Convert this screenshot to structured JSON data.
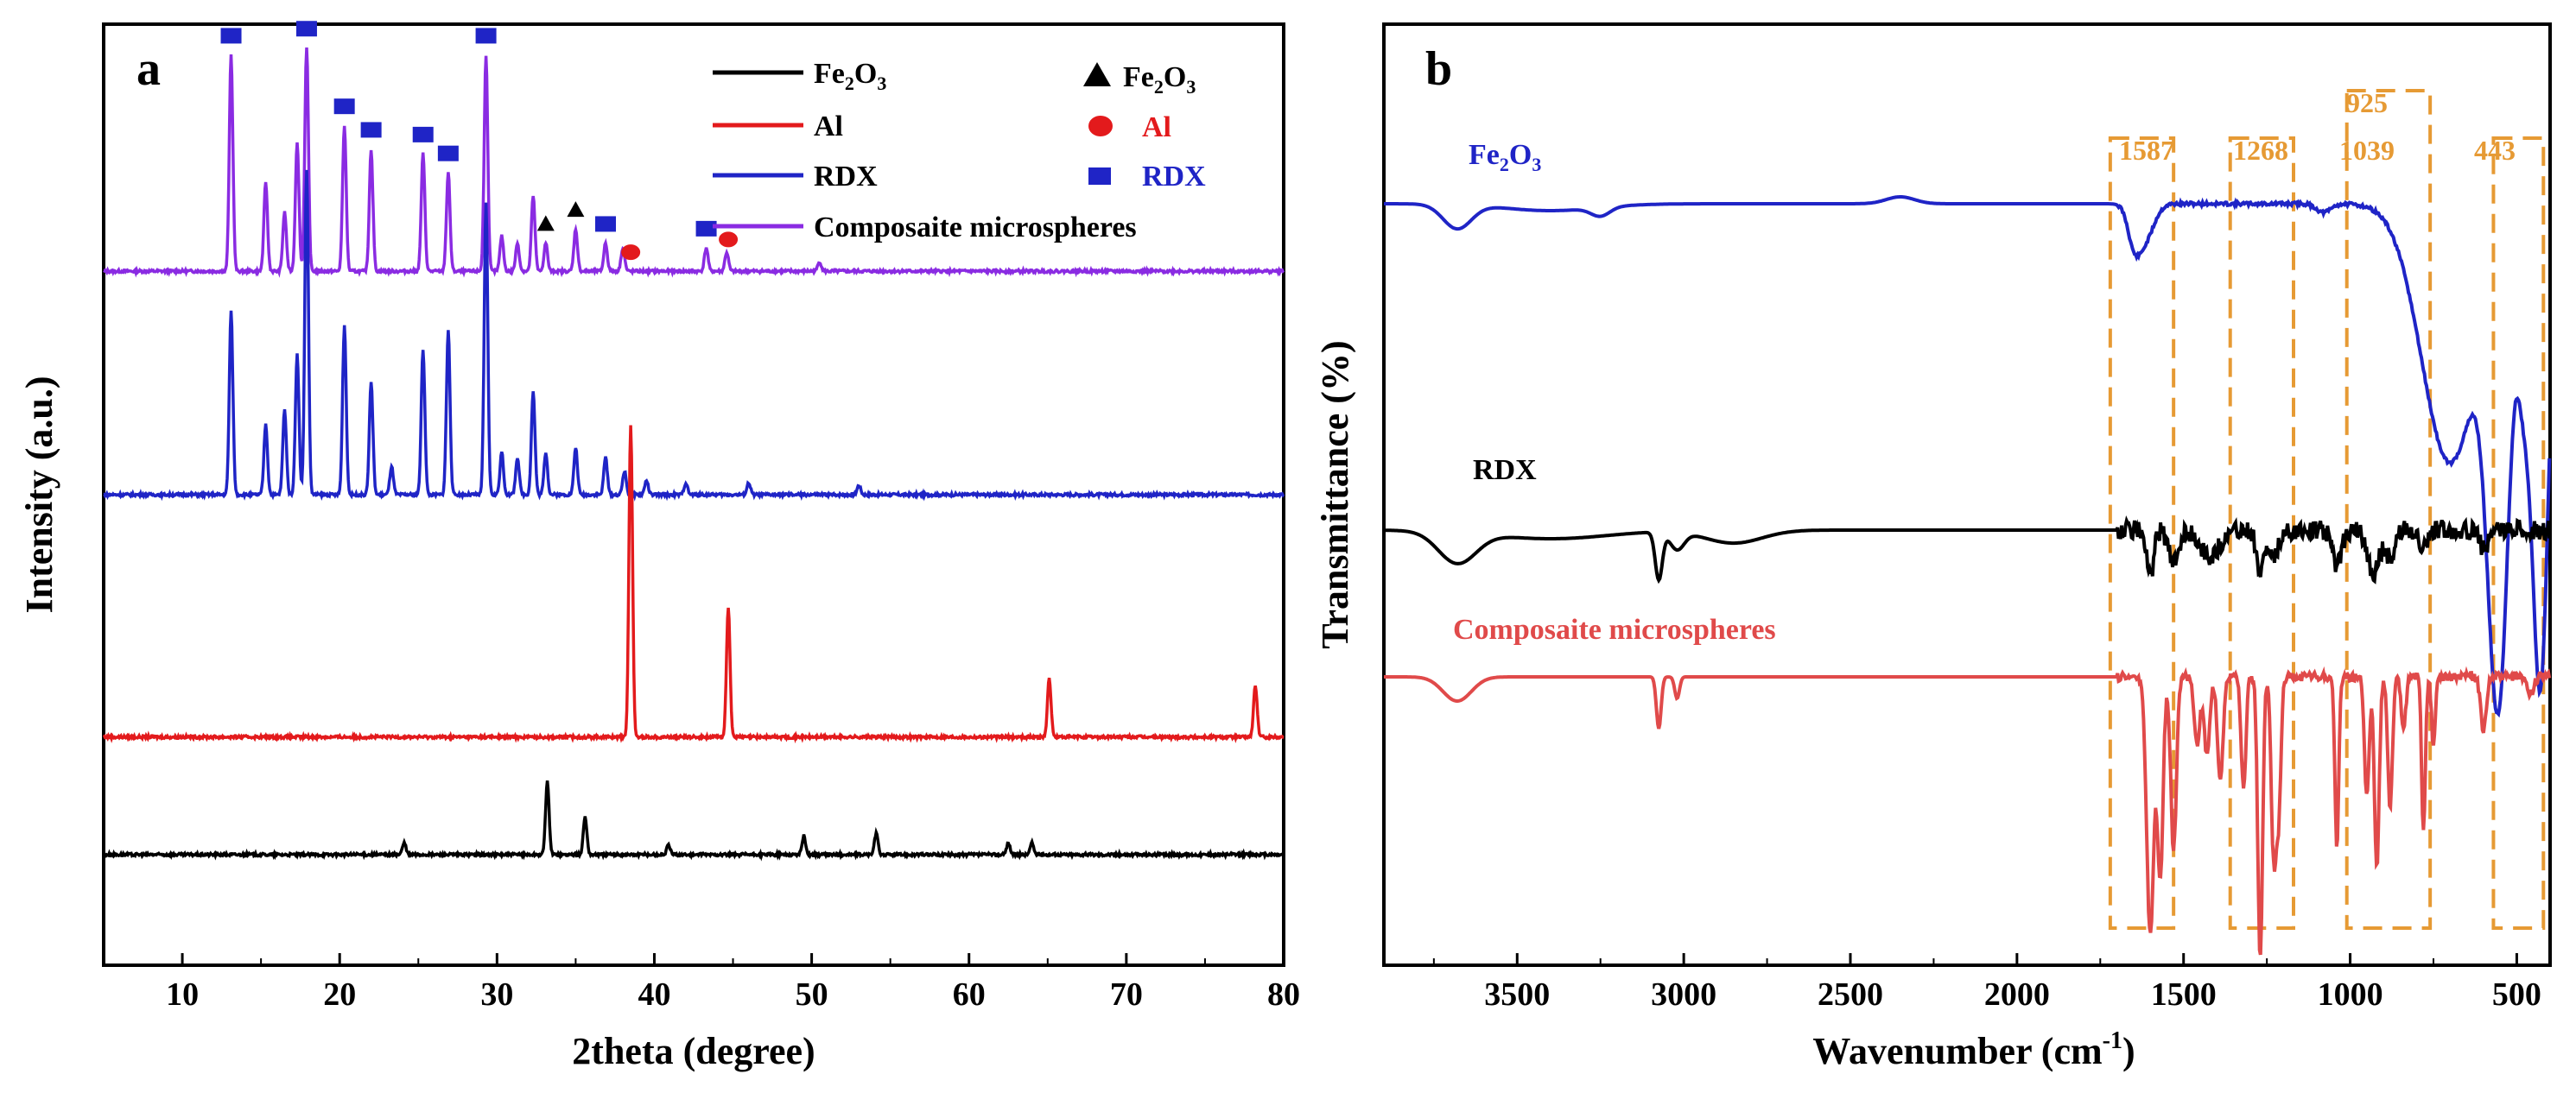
{
  "chart_data": [
    {
      "panel": "a",
      "type": "line",
      "title": "",
      "xlabel": "2theta (degree)",
      "ylabel": "Intensity (a.u.)",
      "xlim": [
        5,
        80
      ],
      "xticks": [
        10,
        20,
        30,
        40,
        50,
        60,
        70,
        80
      ],
      "legend": {
        "position": "top-right",
        "lines": [
          {
            "text": "Fe",
            "sub": "2",
            "text2": "O",
            "sub2": "3",
            "color": "#000000"
          },
          {
            "text": "Al",
            "color": "#e31a1c"
          },
          {
            "text": "RDX",
            "color": "#1f24c6"
          },
          {
            "text": "Composaite microspheres",
            "color": "#8a2be2"
          }
        ],
        "markers": [
          {
            "shape": "triangle",
            "text": "Fe",
            "sub": "2",
            "text2": "O",
            "sub2": "3",
            "color": "#000000",
            "textColor": "#000000"
          },
          {
            "shape": "circle",
            "text": "Al",
            "color": "#e31a1c",
            "textColor": "#e31a1c"
          },
          {
            "shape": "square",
            "text": "RDX",
            "color": "#1f24c6",
            "textColor": "#1f24c6"
          }
        ]
      },
      "series": [
        {
          "name": "Composaite microspheres",
          "color": "#8a2be2",
          "offset": 2.95,
          "peaks": [
            [
              13.1,
              0.92
            ],
            [
              15.3,
              0.38
            ],
            [
              16.5,
              0.25
            ],
            [
              17.3,
              0.55
            ],
            [
              17.9,
              0.95
            ],
            [
              20.3,
              0.62
            ],
            [
              22.0,
              0.52
            ],
            [
              25.3,
              0.5
            ],
            [
              26.9,
              0.42
            ],
            [
              29.3,
              0.92
            ],
            [
              30.3,
              0.15
            ],
            [
              31.3,
              0.12
            ],
            [
              32.3,
              0.32
            ],
            [
              33.1,
              0.12
            ],
            [
              35.0,
              0.18
            ],
            [
              36.9,
              0.12
            ],
            [
              38.0,
              0.1
            ],
            [
              43.3,
              0.1
            ],
            [
              44.6,
              0.08
            ],
            [
              50.5,
              0.04
            ]
          ]
        },
        {
          "name": "RDX",
          "color": "#1f24c6",
          "offset": 2.0,
          "peaks": [
            [
              13.1,
              0.78
            ],
            [
              15.3,
              0.3
            ],
            [
              16.5,
              0.36
            ],
            [
              17.3,
              0.6
            ],
            [
              17.9,
              1.38
            ],
            [
              20.3,
              0.72
            ],
            [
              22.0,
              0.48
            ],
            [
              23.3,
              0.12
            ],
            [
              25.3,
              0.62
            ],
            [
              26.9,
              0.7
            ],
            [
              29.3,
              1.24
            ],
            [
              30.3,
              0.18
            ],
            [
              31.3,
              0.16
            ],
            [
              32.3,
              0.44
            ],
            [
              33.1,
              0.18
            ],
            [
              35.0,
              0.2
            ],
            [
              36.9,
              0.16
            ],
            [
              38.1,
              0.1
            ],
            [
              39.5,
              0.06
            ],
            [
              42.0,
              0.05
            ],
            [
              46.0,
              0.05
            ],
            [
              53.0,
              0.04
            ]
          ]
        },
        {
          "name": "Al",
          "color": "#e31a1c",
          "offset": 0.97,
          "peaks": [
            [
              38.5,
              1.32
            ],
            [
              44.7,
              0.55
            ],
            [
              65.1,
              0.25
            ],
            [
              78.2,
              0.22
            ]
          ]
        },
        {
          "name": "Fe2O3",
          "color": "#000000",
          "offset": 0.47,
          "peaks": [
            [
              24.1,
              0.05
            ],
            [
              33.2,
              0.31
            ],
            [
              35.6,
              0.16
            ],
            [
              40.9,
              0.04
            ],
            [
              49.5,
              0.08
            ],
            [
              54.1,
              0.09
            ],
            [
              62.5,
              0.05
            ],
            [
              64.0,
              0.05
            ]
          ]
        }
      ],
      "markers": [
        {
          "shape": "square",
          "color": "#1f24c6",
          "x": [
            13.1,
            17.9,
            20.3,
            22.0,
            25.3,
            26.9,
            29.3,
            36.9,
            43.3
          ]
        },
        {
          "shape": "triangle",
          "color": "#000000",
          "x": [
            33.1,
            35.0
          ]
        },
        {
          "shape": "circle",
          "color": "#e31a1c",
          "x": [
            38.5,
            44.7
          ]
        }
      ]
    },
    {
      "panel": "b",
      "type": "line",
      "title": "",
      "xlabel": "Wavenumber (cm",
      "xlabel_sup": "-1",
      "xlabel_end": ")",
      "ylabel": "Transmittance (%)",
      "xlim": [
        3900,
        400
      ],
      "xticks": [
        3500,
        3000,
        2500,
        2000,
        1500,
        1000,
        500
      ],
      "series": [
        {
          "name": "Fe2O3",
          "label": "Fe",
          "sub": "2",
          "label2": "O",
          "sub2": "3",
          "color": "#1f24c6"
        },
        {
          "name": "RDX",
          "label": "RDX",
          "color": "#000000"
        },
        {
          "name": "Composaite microspheres",
          "label": "Composaite microspheres",
          "color": "#e04a4a"
        }
      ],
      "annotation_color": "#e69a34",
      "annotations": [
        "1587",
        "1268",
        "925",
        "1039",
        "443"
      ]
    }
  ]
}
